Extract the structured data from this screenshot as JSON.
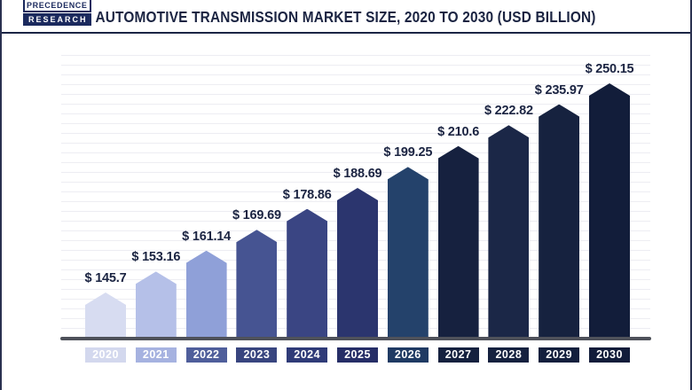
{
  "header": {
    "logo_line1": "PRECEDENCE",
    "logo_line2": "RESEARCH",
    "title": "AUTOMOTIVE TRANSMISSION MARKET SIZE, 2020 TO 2030 (USD BILLION)"
  },
  "colors": {
    "accent_navy": "#1b2442",
    "header_rule": "#1b2545",
    "baseline": "#4e515a",
    "gridline": "#ededf2",
    "frame_border": "#2a3150",
    "axis_label_text": "#ffffff"
  },
  "chart_data": {
    "type": "bar",
    "title": "Automotive Transmission Market Size, 2020 to 2030 (USD Billion)",
    "unit": "USD Billion",
    "categories": [
      "2020",
      "2021",
      "2022",
      "2023",
      "2024",
      "2025",
      "2026",
      "2027",
      "2028",
      "2029",
      "2030"
    ],
    "values": [
      145.7,
      153.16,
      161.14,
      169.69,
      178.86,
      188.69,
      199.25,
      210.6,
      222.82,
      235.97,
      250.15
    ],
    "value_labels": [
      "$ 145.7",
      "$ 153.16",
      "$ 161.14",
      "$ 169.69",
      "$ 178.86",
      "$ 188.69",
      "$ 199.25",
      "$ 210.6",
      "$ 222.82",
      "$ 235.97",
      "$ 250.15"
    ],
    "bar_colors": [
      "#d7dcf1",
      "#b5c0e8",
      "#8fa0d8",
      "#465492",
      "#3a4583",
      "#2b356e",
      "#24426b",
      "#16213f",
      "#1b2747",
      "#16223f",
      "#121d3a"
    ],
    "axis_label_colors": [
      "#d3d8ee",
      "#a6b2e0",
      "#4f5e9b",
      "#38457f",
      "#2f3b78",
      "#262e67",
      "#1f3a63",
      "#15213f",
      "#15213f",
      "#131f3d",
      "#111c3a"
    ],
    "bar_shape": "pentagon-pointed-top",
    "grid": true,
    "y_axis_visible": false,
    "legend_position": "none",
    "xlabel": "",
    "ylabel": ""
  }
}
